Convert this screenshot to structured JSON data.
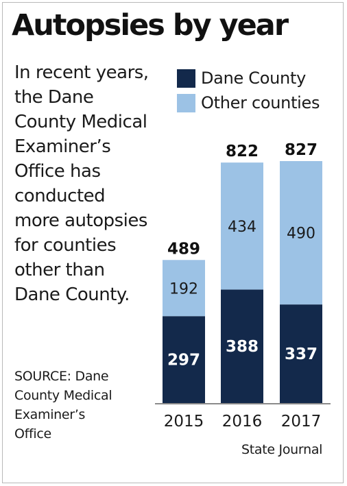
{
  "title": "Autopsies by year",
  "description": "In recent years, the Dane County Medical Examiner’s Office has conducted more autopsies for counties other than Dane County.",
  "source": "SOURCE: Dane County Medical Examiner’s Office",
  "credit": "State Journal",
  "colors": {
    "dane": "#13294b",
    "other": "#9cc2e5"
  },
  "chart_data": {
    "type": "bar",
    "stacked": true,
    "categories": [
      "2015",
      "2016",
      "2017"
    ],
    "series": [
      {
        "name": "Dane County",
        "values": [
          297,
          388,
          337
        ]
      },
      {
        "name": "Other counties",
        "values": [
          192,
          434,
          490
        ]
      }
    ],
    "totals": [
      489,
      822,
      827
    ],
    "title": "Autopsies by year",
    "xlabel": "",
    "ylabel": "",
    "ylim": [
      0,
      827
    ],
    "grid": false,
    "legend_position": "top-right"
  }
}
